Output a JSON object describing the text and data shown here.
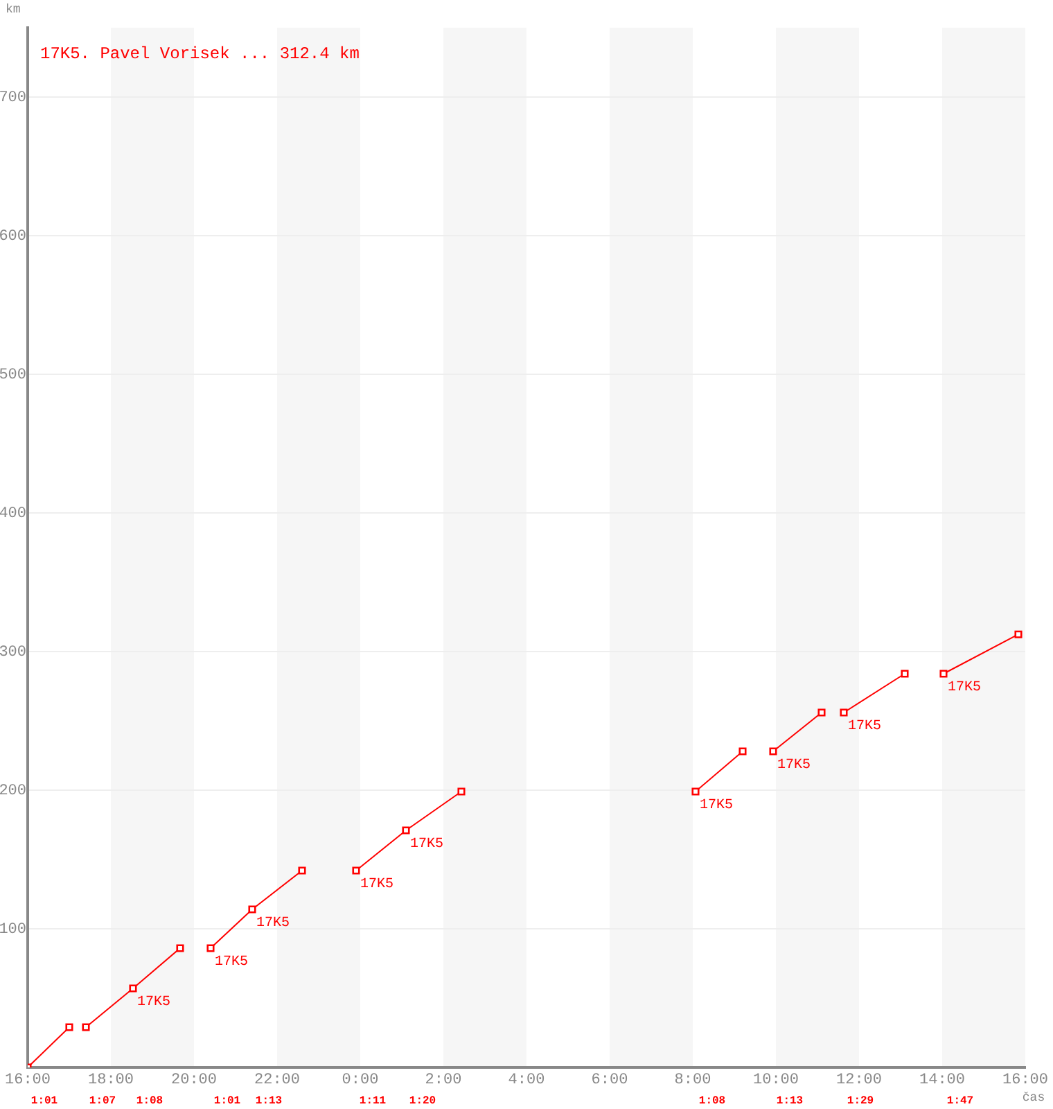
{
  "chart_data": {
    "type": "line",
    "title": "17K5. Pavel Vorisek ... 312.4 km",
    "xlabel": "čas",
    "ylabel": "km",
    "series": [
      {
        "color": "#ff0000",
        "x": [
          "2000-01-01T16:00",
          "2000-01-01T17:00"
        ],
        "values": [
          0,
          29
        ]
      },
      {
        "color": "#ff0000",
        "x": [
          "2000-01-01T17:24",
          "2000-01-01T18:32",
          "2000-01-01T19:40"
        ],
        "values": [
          29,
          57,
          86
        ]
      },
      {
        "color": "#ff0000",
        "x": [
          "2000-01-01T20:24",
          "2000-01-01T21:24",
          "2000-01-01T22:36"
        ],
        "values": [
          86,
          114,
          142
        ]
      },
      {
        "color": "#ff0000",
        "x": [
          "2000-01-01T23:54",
          "2000-01-02T01:06",
          "2000-01-02T02:26"
        ],
        "values": [
          142,
          171,
          199
        ]
      },
      {
        "color": "#ff0000",
        "x": [
          "2000-01-02T08:04",
          "2000-01-02T09:12"
        ],
        "values": [
          199,
          228
        ]
      },
      {
        "color": "#ff0000",
        "x": [
          "2000-01-02T09:56",
          "2000-01-02T11:06"
        ],
        "values": [
          228,
          256
        ]
      },
      {
        "color": "#ff0000",
        "x": [
          "2000-01-02T11:38",
          "2000-01-02T13:06"
        ],
        "values": [
          256,
          284
        ]
      },
      {
        "color": "#ff0000",
        "x": [
          "2000-01-02T14:02",
          "2000-01-02T15:50"
        ],
        "values": [
          284,
          312.4
        ]
      }
    ],
    "xlim": [
      "2000-01-01T16:00",
      "2000-01-02T16:00"
    ],
    "xticks": [
      {
        "value": "2000-01-01T16:00",
        "label": "16:00"
      },
      {
        "value": "2000-01-01T18:00",
        "label": "18:00"
      },
      {
        "value": "2000-01-01T20:00",
        "label": "20:00"
      },
      {
        "value": "2000-01-01T22:00",
        "label": "22:00"
      },
      {
        "value": "2000-01-02T00:00",
        "label": "0:00"
      },
      {
        "value": "2000-01-02T02:00",
        "label": "2:00"
      },
      {
        "value": "2000-01-02T04:00",
        "label": "4:00"
      },
      {
        "value": "2000-01-02T06:00",
        "label": "6:00"
      },
      {
        "value": "2000-01-02T08:00",
        "label": "8:00"
      },
      {
        "value": "2000-01-02T10:00",
        "label": "10:00"
      },
      {
        "value": "2000-01-02T12:00",
        "label": "12:00"
      },
      {
        "value": "2000-01-02T14:00",
        "label": "14:00"
      },
      {
        "value": "2000-01-02T16:00",
        "label": "16:00"
      }
    ],
    "ylim": [
      0,
      750
    ],
    "yticks": [
      {
        "value": 0,
        "label": null
      },
      100,
      200,
      300,
      400,
      500,
      600,
      700
    ],
    "bands": [
      {
        "axis": "x",
        "from": "2000-01-01T18:00",
        "to": "2000-01-01T20:00",
        "color": "#f6f6f6"
      },
      {
        "axis": "x",
        "from": "2000-01-01T22:00",
        "to": "2000-01-02T00:00",
        "color": "#f6f6f6"
      },
      {
        "axis": "x",
        "from": "2000-01-02T02:00",
        "to": "2000-01-02T04:00",
        "color": "#f6f6f6"
      },
      {
        "axis": "x",
        "from": "2000-01-02T06:00",
        "to": "2000-01-02T08:00",
        "color": "#f6f6f6"
      },
      {
        "axis": "x",
        "from": "2000-01-02T10:00",
        "to": "2000-01-02T12:00",
        "color": "#f6f6f6"
      },
      {
        "axis": "x",
        "from": "2000-01-02T14:00",
        "to": "2000-01-02T16:00",
        "color": "#f6f6f6"
      }
    ],
    "annotations": [
      {
        "text": "17K5",
        "x": "2000-01-01T18:32",
        "y": 57
      },
      {
        "text": "17K5",
        "x": "2000-01-01T20:24",
        "y": 86
      },
      {
        "text": "17K5",
        "x": "2000-01-01T21:24",
        "y": 114
      },
      {
        "text": "17K5",
        "x": "2000-01-01T23:54",
        "y": 142
      },
      {
        "text": "17K5",
        "x": "2000-01-02T01:06",
        "y": 171
      },
      {
        "text": "17K5",
        "x": "2000-01-02T08:04",
        "y": 199
      },
      {
        "text": "17K5",
        "x": "2000-01-02T09:56",
        "y": 228
      },
      {
        "text": "17K5",
        "x": "2000-01-02T11:38",
        "y": 256
      },
      {
        "text": "17K5",
        "x": "2000-01-02T14:02",
        "y": 284
      },
      "1:01",
      "1:07",
      "1:08",
      "1:01",
      "1:13",
      "1:11",
      "1:20",
      "1:08",
      "1:13",
      "1:29",
      "1:47"
    ],
    "grid": "y",
    "legend": false,
    "marker": "square",
    "line_style": "solid"
  }
}
